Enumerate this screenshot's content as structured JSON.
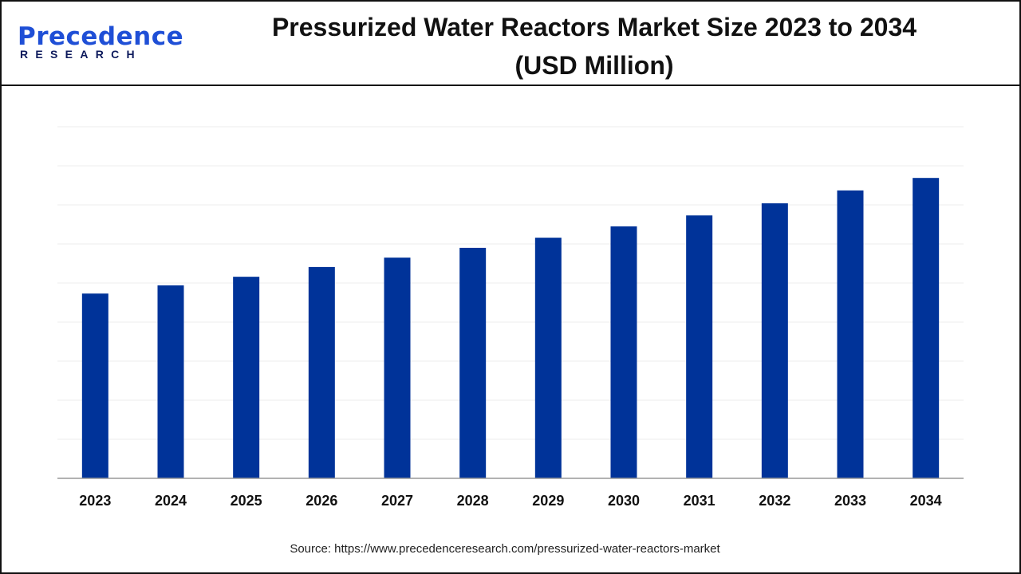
{
  "logo": {
    "line1": "Precedence",
    "line2": "RESEARCH"
  },
  "title_line1": "Pressurized Water Reactors Market Size 2023 to 2034",
  "title_line2": "(USD Million)",
  "source": "Source: https://www.precedenceresearch.com/pressurized-water-reactors-market",
  "colors": {
    "bar": "#003399",
    "grid": "#ececec",
    "axis": "#999999"
  },
  "chart_data": {
    "type": "bar",
    "title": "Pressurized Water Reactors Market Size 2023 to 2034 (USD Million)",
    "xlabel": "",
    "ylabel": "",
    "y_tick_labels_shown": false,
    "grid": true,
    "categories": [
      "2023",
      "2024",
      "2025",
      "2026",
      "2027",
      "2028",
      "2029",
      "2030",
      "2031",
      "2032",
      "2033",
      "2034"
    ],
    "values": [
      4.73,
      4.94,
      5.16,
      5.41,
      5.65,
      5.9,
      6.16,
      6.45,
      6.73,
      7.04,
      7.37,
      7.69
    ],
    "ylim": [
      0,
      9
    ]
  }
}
